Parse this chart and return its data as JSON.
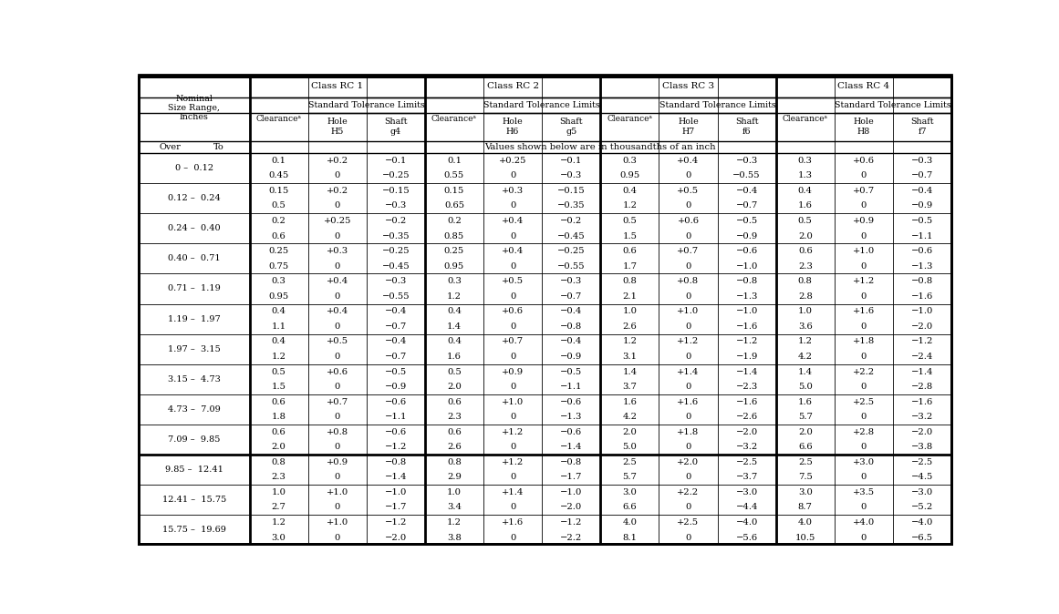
{
  "rows": [
    [
      "0 –  0.12",
      "0.1",
      "+0.2",
      "−0.1",
      "0.1",
      "+0.25",
      "−0.1",
      "0.3",
      "+0.4",
      "−0.3",
      "0.3",
      "+0.6",
      "−0.3"
    ],
    [
      "",
      "0.45",
      "0",
      "−0.25",
      "0.55",
      "0",
      "−0.3",
      "0.95",
      "0",
      "−0.55",
      "1.3",
      "0",
      "−0.7"
    ],
    [
      "0.12 –  0.24",
      "0.15",
      "+0.2",
      "−0.15",
      "0.15",
      "+0.3",
      "−0.15",
      "0.4",
      "+0.5",
      "−0.4",
      "0.4",
      "+0.7",
      "−0.4"
    ],
    [
      "",
      "0.5",
      "0",
      "−0.3",
      "0.65",
      "0",
      "−0.35",
      "1.2",
      "0",
      "−0.7",
      "1.6",
      "0",
      "−0.9"
    ],
    [
      "0.24 –  0.40",
      "0.2",
      "+0.25",
      "−0.2",
      "0.2",
      "+0.4",
      "−0.2",
      "0.5",
      "+0.6",
      "−0.5",
      "0.5",
      "+0.9",
      "−0.5"
    ],
    [
      "",
      "0.6",
      "0",
      "−0.35",
      "0.85",
      "0",
      "−0.45",
      "1.5",
      "0",
      "−0.9",
      "2.0",
      "0",
      "−1.1"
    ],
    [
      "0.40 –  0.71",
      "0.25",
      "+0.3",
      "−0.25",
      "0.25",
      "+0.4",
      "−0.25",
      "0.6",
      "+0.7",
      "−0.6",
      "0.6",
      "+1.0",
      "−0.6"
    ],
    [
      "",
      "0.75",
      "0",
      "−0.45",
      "0.95",
      "0",
      "−0.55",
      "1.7",
      "0",
      "−1.0",
      "2.3",
      "0",
      "−1.3"
    ],
    [
      "0.71 –  1.19",
      "0.3",
      "+0.4",
      "−0.3",
      "0.3",
      "+0.5",
      "−0.3",
      "0.8",
      "+0.8",
      "−0.8",
      "0.8",
      "+1.2",
      "−0.8"
    ],
    [
      "",
      "0.95",
      "0",
      "−0.55",
      "1.2",
      "0",
      "−0.7",
      "2.1",
      "0",
      "−1.3",
      "2.8",
      "0",
      "−1.6"
    ],
    [
      "1.19 –  1.97",
      "0.4",
      "+0.4",
      "−0.4",
      "0.4",
      "+0.6",
      "−0.4",
      "1.0",
      "+1.0",
      "−1.0",
      "1.0",
      "+1.6",
      "−1.0"
    ],
    [
      "",
      "1.1",
      "0",
      "−0.7",
      "1.4",
      "0",
      "−0.8",
      "2.6",
      "0",
      "−1.6",
      "3.6",
      "0",
      "−2.0"
    ],
    [
      "1.97 –  3.15",
      "0.4",
      "+0.5",
      "−0.4",
      "0.4",
      "+0.7",
      "−0.4",
      "1.2",
      "+1.2",
      "−1.2",
      "1.2",
      "+1.8",
      "−1.2"
    ],
    [
      "",
      "1.2",
      "0",
      "−0.7",
      "1.6",
      "0",
      "−0.9",
      "3.1",
      "0",
      "−1.9",
      "4.2",
      "0",
      "−2.4"
    ],
    [
      "3.15 –  4.73",
      "0.5",
      "+0.6",
      "−0.5",
      "0.5",
      "+0.9",
      "−0.5",
      "1.4",
      "+1.4",
      "−1.4",
      "1.4",
      "+2.2",
      "−1.4"
    ],
    [
      "",
      "1.5",
      "0",
      "−0.9",
      "2.0",
      "0",
      "−1.1",
      "3.7",
      "0",
      "−2.3",
      "5.0",
      "0",
      "−2.8"
    ],
    [
      "4.73 –  7.09",
      "0.6",
      "+0.7",
      "−0.6",
      "0.6",
      "+1.0",
      "−0.6",
      "1.6",
      "+1.6",
      "−1.6",
      "1.6",
      "+2.5",
      "−1.6"
    ],
    [
      "",
      "1.8",
      "0",
      "−1.1",
      "2.3",
      "0",
      "−1.3",
      "4.2",
      "0",
      "−2.6",
      "5.7",
      "0",
      "−3.2"
    ],
    [
      "7.09 –  9.85",
      "0.6",
      "+0.8",
      "−0.6",
      "0.6",
      "+1.2",
      "−0.6",
      "2.0",
      "+1.8",
      "−2.0",
      "2.0",
      "+2.8",
      "−2.0"
    ],
    [
      "",
      "2.0",
      "0",
      "−1.2",
      "2.6",
      "0",
      "−1.4",
      "5.0",
      "0",
      "−3.2",
      "6.6",
      "0",
      "−3.8"
    ],
    [
      "9.85 –  12.41",
      "0.8",
      "+0.9",
      "−0.8",
      "0.8",
      "+1.2",
      "−0.8",
      "2.5",
      "+2.0",
      "−2.5",
      "2.5",
      "+3.0",
      "−2.5"
    ],
    [
      "",
      "2.3",
      "0",
      "−1.4",
      "2.9",
      "0",
      "−1.7",
      "5.7",
      "0",
      "−3.7",
      "7.5",
      "0",
      "−4.5"
    ],
    [
      "12.41 –  15.75",
      "1.0",
      "+1.0",
      "−1.0",
      "1.0",
      "+1.4",
      "−1.0",
      "3.0",
      "+2.2",
      "−3.0",
      "3.0",
      "+3.5",
      "−3.0"
    ],
    [
      "",
      "2.7",
      "0",
      "−1.7",
      "3.4",
      "0",
      "−2.0",
      "6.6",
      "0",
      "−4.4",
      "8.7",
      "0",
      "−5.2"
    ],
    [
      "15.75 –  19.69",
      "1.2",
      "+1.0",
      "−1.2",
      "1.2",
      "+1.6",
      "−1.2",
      "4.0",
      "+2.5",
      "−4.0",
      "4.0",
      "+4.0",
      "−4.0"
    ],
    [
      "",
      "3.0",
      "0",
      "−2.0",
      "3.8",
      "0",
      "−2.2",
      "8.1",
      "0",
      "−5.6",
      "10.5",
      "0",
      "−6.5"
    ]
  ]
}
